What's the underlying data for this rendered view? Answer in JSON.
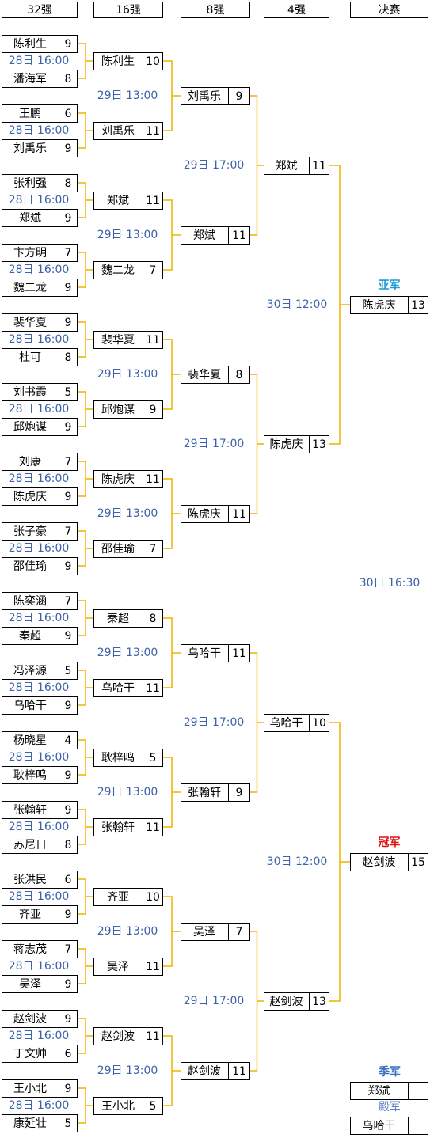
{
  "headers": [
    "32强",
    "16强",
    "8强",
    "4强",
    "决赛"
  ],
  "rounds": [
    [
      {
        "players": [
          {
            "name": "陈利生",
            "score": 9
          },
          {
            "name": "潘海军",
            "score": 8
          }
        ],
        "time": "28日 16:00"
      },
      {
        "players": [
          {
            "name": "王鹏",
            "score": 6
          },
          {
            "name": "刘禹乐",
            "score": 9
          }
        ],
        "time": "28日 16:00"
      },
      {
        "players": [
          {
            "name": "张利强",
            "score": 8
          },
          {
            "name": "郑斌",
            "score": 9
          }
        ],
        "time": "28日 16:00"
      },
      {
        "players": [
          {
            "name": "卞方明",
            "score": 7
          },
          {
            "name": "魏二龙",
            "score": 9
          }
        ],
        "time": "28日 16:00"
      },
      {
        "players": [
          {
            "name": "裴华夏",
            "score": 9
          },
          {
            "name": "杜可",
            "score": 8
          }
        ],
        "time": "28日 16:00"
      },
      {
        "players": [
          {
            "name": "刘书霞",
            "score": 5
          },
          {
            "name": "邱炮谋",
            "score": 9
          }
        ],
        "time": "28日 16:00"
      },
      {
        "players": [
          {
            "name": "刘康",
            "score": 7
          },
          {
            "name": "陈虎庆",
            "score": 9
          }
        ],
        "time": "28日 16:00"
      },
      {
        "players": [
          {
            "name": "张子豪",
            "score": 7
          },
          {
            "name": "邵佳瑜",
            "score": 9
          }
        ],
        "time": "28日 16:00"
      },
      {
        "players": [
          {
            "name": "陈奕涵",
            "score": 7
          },
          {
            "name": "秦超",
            "score": 9
          }
        ],
        "time": "28日 16:00"
      },
      {
        "players": [
          {
            "name": "冯泽源",
            "score": 5
          },
          {
            "name": "乌哈干",
            "score": 9
          }
        ],
        "time": "28日 16:00"
      },
      {
        "players": [
          {
            "name": "杨晓星",
            "score": 4
          },
          {
            "name": "耿梓鸣",
            "score": 9
          }
        ],
        "time": "28日 16:00"
      },
      {
        "players": [
          {
            "name": "张翰轩",
            "score": 9
          },
          {
            "name": "苏尼日",
            "score": 8
          }
        ],
        "time": "28日 16:00"
      },
      {
        "players": [
          {
            "name": "张洪民",
            "score": 6
          },
          {
            "name": "齐亚",
            "score": 9
          }
        ],
        "time": "28日 16:00"
      },
      {
        "players": [
          {
            "name": "蒋志茂",
            "score": 7
          },
          {
            "name": "吴泽",
            "score": 9
          }
        ],
        "time": "28日 16:00"
      },
      {
        "players": [
          {
            "name": "赵剑波",
            "score": 9
          },
          {
            "name": "丁文帅",
            "score": 6
          }
        ],
        "time": "28日 16:00"
      },
      {
        "players": [
          {
            "name": "王小北",
            "score": 9
          },
          {
            "name": "康延壮",
            "score": 5
          }
        ],
        "time": "28日 16:00"
      }
    ],
    [
      {
        "players": [
          {
            "name": "陈利生",
            "score": 10
          },
          {
            "name": "刘禹乐",
            "score": 11
          }
        ],
        "time": "29日 13:00"
      },
      {
        "players": [
          {
            "name": "郑斌",
            "score": 11
          },
          {
            "name": "魏二龙",
            "score": 7
          }
        ],
        "time": "29日 13:00"
      },
      {
        "players": [
          {
            "name": "裴华夏",
            "score": 11
          },
          {
            "name": "邱炮谋",
            "score": 9
          }
        ],
        "time": "29日 13:00"
      },
      {
        "players": [
          {
            "name": "陈虎庆",
            "score": 11
          },
          {
            "name": "邵佳瑜",
            "score": 7
          }
        ],
        "time": "29日 13:00"
      },
      {
        "players": [
          {
            "name": "秦超",
            "score": 8
          },
          {
            "name": "乌哈干",
            "score": 11
          }
        ],
        "time": "29日 13:00"
      },
      {
        "players": [
          {
            "name": "耿梓鸣",
            "score": 5
          },
          {
            "name": "张翰轩",
            "score": 11
          }
        ],
        "time": "29日 13:00"
      },
      {
        "players": [
          {
            "name": "齐亚",
            "score": 10
          },
          {
            "name": "吴泽",
            "score": 11
          }
        ],
        "time": "29日 13:00"
      },
      {
        "players": [
          {
            "name": "赵剑波",
            "score": 11
          },
          {
            "name": "王小北",
            "score": 5
          }
        ],
        "time": "29日 13:00"
      }
    ],
    [
      {
        "players": [
          {
            "name": "刘禹乐",
            "score": 9
          },
          {
            "name": "郑斌",
            "score": 11
          }
        ],
        "time": "29日 17:00"
      },
      {
        "players": [
          {
            "name": "裴华夏",
            "score": 8
          },
          {
            "name": "陈虎庆",
            "score": 11
          }
        ],
        "time": "29日 17:00"
      },
      {
        "players": [
          {
            "name": "乌哈干",
            "score": 11
          },
          {
            "name": "张翰轩",
            "score": 9
          }
        ],
        "time": "29日 17:00"
      },
      {
        "players": [
          {
            "name": "吴泽",
            "score": 7
          },
          {
            "name": "赵剑波",
            "score": 11
          }
        ],
        "time": "29日 17:00"
      }
    ],
    [
      {
        "players": [
          {
            "name": "郑斌",
            "score": 11
          },
          {
            "name": "陈虎庆",
            "score": 13
          }
        ],
        "time": "30日 12:00"
      },
      {
        "players": [
          {
            "name": "乌哈干",
            "score": 10
          },
          {
            "name": "赵剑波",
            "score": 13
          }
        ],
        "time": "30日 12:00"
      }
    ],
    [
      {
        "players": [
          {
            "name": "陈虎庆",
            "score": 13,
            "label": "亚军"
          },
          {
            "name": "赵剑波",
            "score": 15,
            "label": "冠军"
          }
        ],
        "time": "30日 16:30"
      }
    ]
  ],
  "placings": [
    {
      "label": "季军",
      "name": "郑斌"
    },
    {
      "label": "殿军",
      "name": "乌哈干"
    }
  ]
}
